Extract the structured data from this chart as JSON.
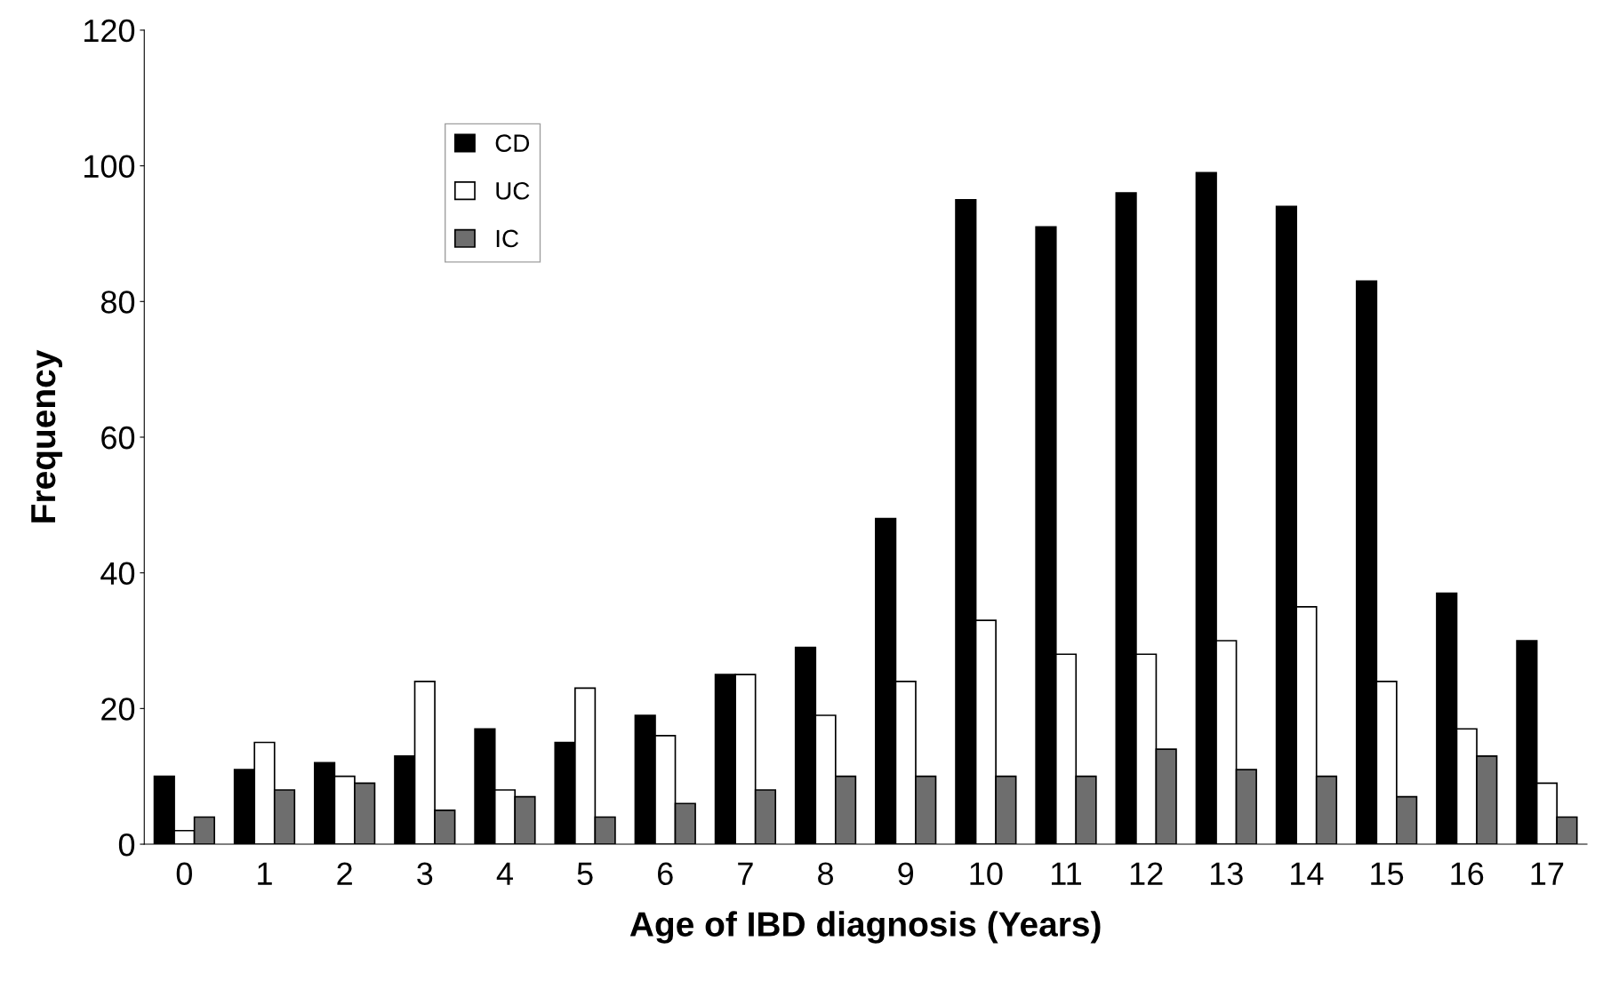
{
  "chart_data": {
    "type": "bar",
    "xlabel": "Age of IBD diagnosis (Years)",
    "ylabel": "Frequency",
    "categories": [
      "0",
      "1",
      "2",
      "3",
      "4",
      "5",
      "6",
      "7",
      "8",
      "9",
      "10",
      "11",
      "12",
      "13",
      "14",
      "15",
      "16",
      "17"
    ],
    "series": [
      {
        "name": "CD",
        "color": "#000000",
        "values": [
          10,
          11,
          12,
          13,
          17,
          15,
          19,
          25,
          29,
          48,
          95,
          91,
          96,
          99,
          94,
          83,
          37,
          30
        ]
      },
      {
        "name": "UC",
        "color": "#ffffff",
        "values": [
          2,
          15,
          10,
          24,
          8,
          23,
          16,
          25,
          19,
          24,
          33,
          28,
          28,
          30,
          35,
          24,
          17,
          9
        ]
      },
      {
        "name": "IC",
        "color": "#6e6e6e",
        "values": [
          4,
          8,
          9,
          5,
          7,
          4,
          6,
          8,
          10,
          10,
          10,
          10,
          14,
          11,
          10,
          7,
          13,
          4
        ]
      }
    ],
    "ylim": [
      0,
      120
    ],
    "yticks": [
      0,
      20,
      40,
      60,
      80,
      100,
      120
    ],
    "grid": false,
    "legend": "top left"
  }
}
